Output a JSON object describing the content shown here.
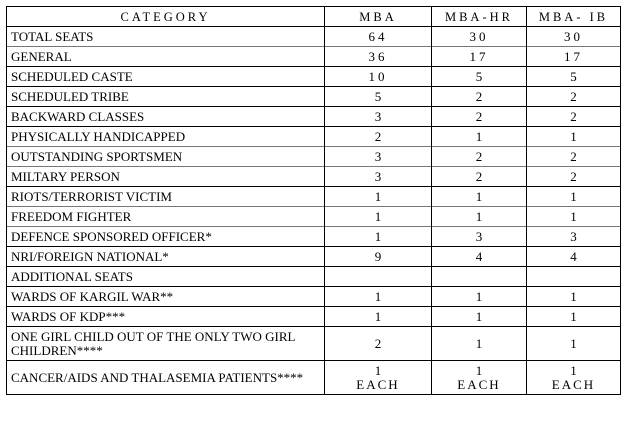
{
  "header": {
    "category": "CATEGORY",
    "mba": "MBA",
    "mba_hr": "MBA-HR",
    "mba_ib": "MBA- IB"
  },
  "rows": [
    {
      "category": "TOTAL SEATS",
      "mba": "64",
      "mba_hr": "30",
      "mba_ib": "30"
    },
    {
      "category": "GENERAL",
      "mba": "36",
      "mba_hr": "17",
      "mba_ib": "17"
    },
    {
      "category": "SCHEDULED CASTE",
      "mba": "10",
      "mba_hr": "5",
      "mba_ib": "5"
    },
    {
      "category": "SCHEDULED TRIBE",
      "mba": "5",
      "mba_hr": "2",
      "mba_ib": "2"
    },
    {
      "category": "BACKWARD CLASSES",
      "mba": "3",
      "mba_hr": "2",
      "mba_ib": "2"
    },
    {
      "category": "PHYSICALLY HANDICAPPED",
      "mba": "2",
      "mba_hr": "1",
      "mba_ib": "1"
    },
    {
      "category": "OUTSTANDING SPORTSMEN",
      "mba": "3",
      "mba_hr": "2",
      "mba_ib": "2"
    },
    {
      "category": "MILTARY PERSON",
      "mba": "3",
      "mba_hr": "2",
      "mba_ib": "2"
    },
    {
      "category": "RIOTS/TERRORIST VICTIM",
      "mba": "1",
      "mba_hr": "1",
      "mba_ib": "1"
    },
    {
      "category": "FREEDOM FIGHTER",
      "mba": "1",
      "mba_hr": "1",
      "mba_ib": "1"
    },
    {
      "category": "DEFENCE SPONSORED OFFICER*",
      "mba": "1",
      "mba_hr": "3",
      "mba_ib": "3"
    },
    {
      "category": "NRI/FOREIGN NATIONAL*",
      "mba": "9",
      "mba_hr": "4",
      "mba_ib": "4"
    },
    {
      "category": "ADDITIONAL SEATS",
      "mba": "",
      "mba_hr": "",
      "mba_ib": ""
    },
    {
      "category": "WARDS OF KARGIL WAR**",
      "mba": "1",
      "mba_hr": "1",
      "mba_ib": "1"
    },
    {
      "category": "WARDS OF KDP***",
      "mba": "1",
      "mba_hr": "1",
      "mba_ib": "1"
    },
    {
      "category": "ONE GIRL CHILD OUT OF THE ONLY TWO GIRL CHILDREN****",
      "mba": "2",
      "mba_hr": "1",
      "mba_ib": "1"
    },
    {
      "category": "CANCER/AIDS AND THALASEMIA PATIENTS****",
      "mba": "1",
      "mba_hr": "1",
      "mba_ib": "1",
      "note": "EACH"
    }
  ]
}
